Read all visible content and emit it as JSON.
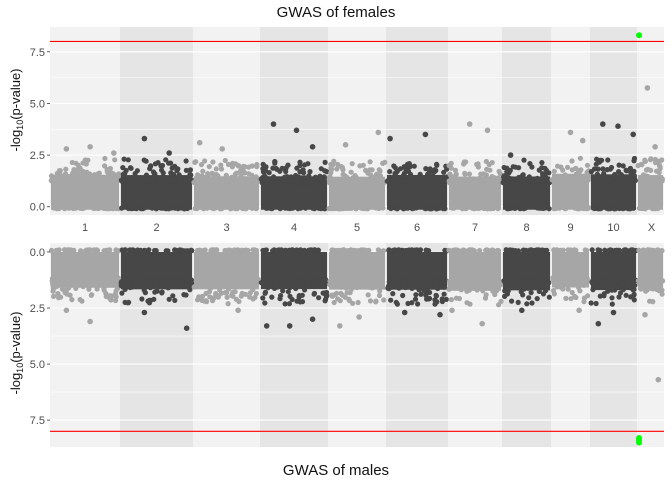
{
  "chart_data": [
    {
      "type": "scatter",
      "title": "GWAS of females",
      "ylabel": "-log10(p-value)",
      "ylim": [
        -0.4,
        8.7
      ],
      "y_ticks": [
        "0.0",
        "2.5",
        "5.0",
        "7.5"
      ],
      "y_tick_values": [
        0,
        2.5,
        5,
        7.5
      ],
      "threshold": 8,
      "chromosomes": [
        "1",
        "2",
        "3",
        "4",
        "5",
        "6",
        "7",
        "8",
        "9",
        "10",
        "X"
      ],
      "colors": {
        "light": "#a6a6a6",
        "dark": "#474747",
        "threshold": "#ff0000",
        "highlight": "#00ff00",
        "band": "#e5e5e5",
        "panel": "#f2f2f2"
      },
      "peaks": [
        {
          "chr": "1",
          "y": 2.8
        },
        {
          "chr": "1",
          "y": 2.9
        },
        {
          "chr": "1",
          "y": 2.6
        },
        {
          "chr": "2",
          "y": 3.3
        },
        {
          "chr": "2",
          "y": 2.6
        },
        {
          "chr": "3",
          "y": 3.1
        },
        {
          "chr": "3",
          "y": 2.8
        },
        {
          "chr": "4",
          "y": 2.9
        },
        {
          "chr": "4",
          "y": 4.0
        },
        {
          "chr": "4",
          "y": 3.7
        },
        {
          "chr": "5",
          "y": 3.6
        },
        {
          "chr": "5",
          "y": 3.0
        },
        {
          "chr": "6",
          "y": 3.5
        },
        {
          "chr": "6",
          "y": 3.3
        },
        {
          "chr": "7",
          "y": 4.0
        },
        {
          "chr": "7",
          "y": 3.7
        },
        {
          "chr": "8",
          "y": 2.5
        },
        {
          "chr": "9",
          "y": 3.6
        },
        {
          "chr": "9",
          "y": 3.2
        },
        {
          "chr": "10",
          "y": 4.0
        },
        {
          "chr": "10",
          "y": 3.9
        },
        {
          "chr": "10",
          "y": 3.5
        },
        {
          "chr": "X",
          "y": 5.75
        },
        {
          "chr": "X",
          "y": 2.9
        }
      ],
      "highlight": [
        {
          "chr": "X",
          "y": 8.3
        }
      ]
    },
    {
      "type": "scatter",
      "title": "GWAS of males",
      "ylabel": "-log10(p-value)",
      "reversed": true,
      "ylim": [
        -0.4,
        8.7
      ],
      "y_ticks": [
        "0.0",
        "2.5",
        "5.0",
        "7.5"
      ],
      "y_tick_values": [
        0,
        2.5,
        5,
        7.5
      ],
      "threshold": 8,
      "chromosomes": [
        "1",
        "2",
        "3",
        "4",
        "5",
        "6",
        "7",
        "8",
        "9",
        "10",
        "X"
      ],
      "colors": {
        "light": "#a6a6a6",
        "dark": "#474747",
        "threshold": "#ff0000",
        "highlight": "#00ff00",
        "band": "#e5e5e5",
        "panel": "#f2f2f2"
      },
      "peaks": [
        {
          "chr": "1",
          "y": 2.6
        },
        {
          "chr": "1",
          "y": 3.1
        },
        {
          "chr": "2",
          "y": 3.4
        },
        {
          "chr": "2",
          "y": 2.7
        },
        {
          "chr": "3",
          "y": 2.6
        },
        {
          "chr": "4",
          "y": 3.3
        },
        {
          "chr": "4",
          "y": 3.3
        },
        {
          "chr": "4",
          "y": 3.0
        },
        {
          "chr": "5",
          "y": 3.3
        },
        {
          "chr": "5",
          "y": 2.9
        },
        {
          "chr": "6",
          "y": 2.8
        },
        {
          "chr": "6",
          "y": 2.7
        },
        {
          "chr": "7",
          "y": 3.2
        },
        {
          "chr": "7",
          "y": 2.6
        },
        {
          "chr": "8",
          "y": 2.6
        },
        {
          "chr": "9",
          "y": 2.6
        },
        {
          "chr": "10",
          "y": 3.2
        },
        {
          "chr": "10",
          "y": 2.7
        },
        {
          "chr": "X",
          "y": 5.7
        },
        {
          "chr": "X",
          "y": 2.8
        }
      ],
      "highlight": [
        {
          "chr": "X",
          "y": 8.3
        },
        {
          "chr": "X",
          "y": 8.4
        },
        {
          "chr": "X",
          "y": 8.5
        }
      ]
    }
  ]
}
